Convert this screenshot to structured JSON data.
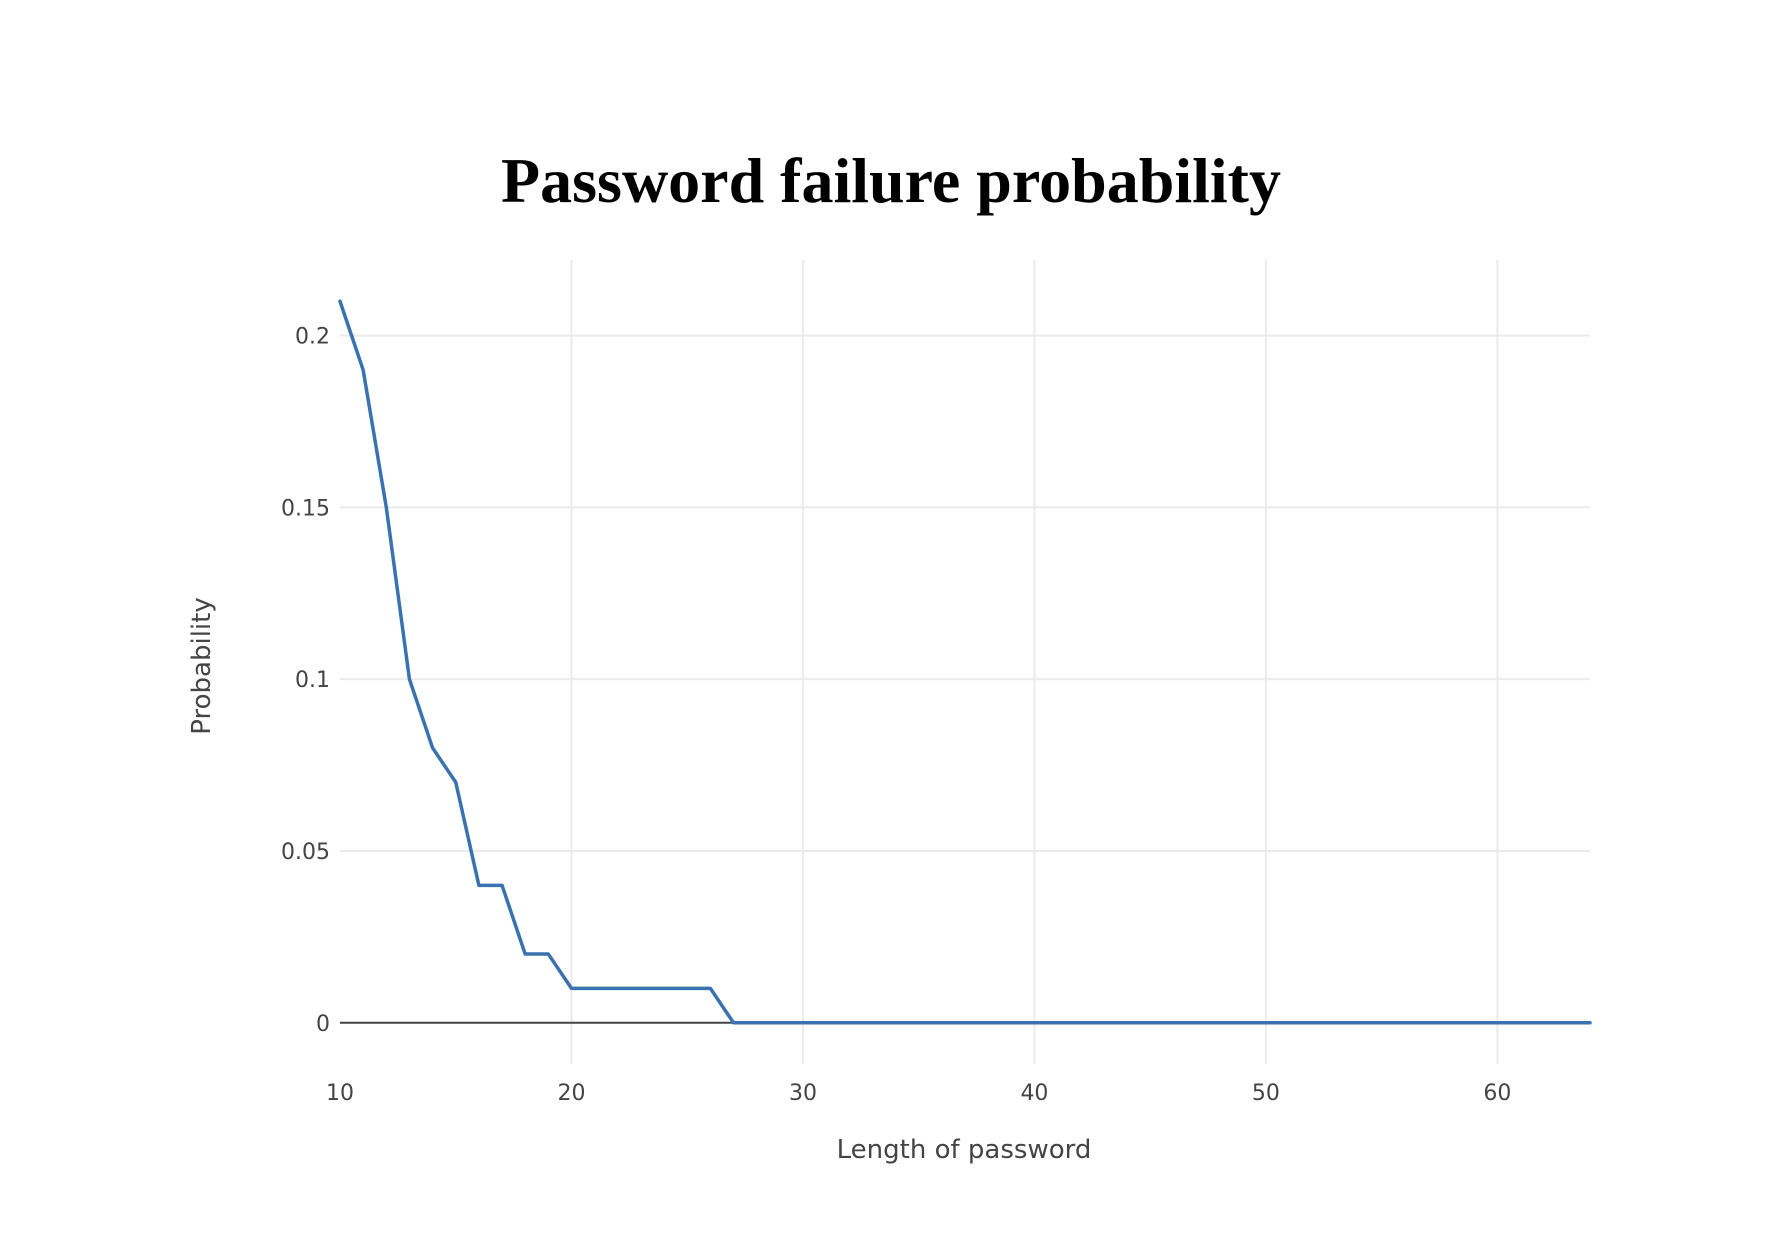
{
  "chart_data": {
    "type": "line",
    "title": "Password failure probability",
    "xlabel": "Length of password",
    "ylabel": "Probability",
    "xlim": [
      10,
      64
    ],
    "ylim": [
      -0.012,
      0.222
    ],
    "x_ticks": [
      10,
      20,
      30,
      40,
      50,
      60
    ],
    "y_ticks": [
      0,
      0.05,
      0.1,
      0.15,
      0.2
    ],
    "x_tick_labels": [
      "10",
      "20",
      "30",
      "40",
      "50",
      "60"
    ],
    "y_tick_labels": [
      "0",
      "0.05",
      "0.1",
      "0.15",
      "0.2"
    ],
    "grid": true,
    "series": [
      {
        "color": "#3a72b0",
        "x": [
          10,
          11,
          12,
          13,
          14,
          15,
          16,
          17,
          18,
          19,
          20,
          21,
          22,
          23,
          24,
          25,
          26,
          27,
          28,
          29,
          30,
          31,
          32,
          33,
          34,
          35,
          36,
          37,
          38,
          39,
          40,
          41,
          42,
          43,
          44,
          45,
          46,
          47,
          48,
          49,
          50,
          51,
          52,
          53,
          54,
          55,
          56,
          57,
          58,
          59,
          60,
          61,
          62,
          63,
          64
        ],
        "y": [
          0.21,
          0.19,
          0.15,
          0.1,
          0.08,
          0.07,
          0.04,
          0.04,
          0.02,
          0.02,
          0.01,
          0.01,
          0.01,
          0.01,
          0.01,
          0.01,
          0.01,
          0,
          0,
          0,
          0,
          0,
          0,
          0,
          0,
          0,
          0,
          0,
          0,
          0,
          0,
          0,
          0,
          0,
          0,
          0,
          0,
          0,
          0,
          0,
          0,
          0,
          0,
          0,
          0,
          0,
          0,
          0,
          0,
          0,
          0,
          0,
          0,
          0,
          0
        ]
      }
    ]
  }
}
